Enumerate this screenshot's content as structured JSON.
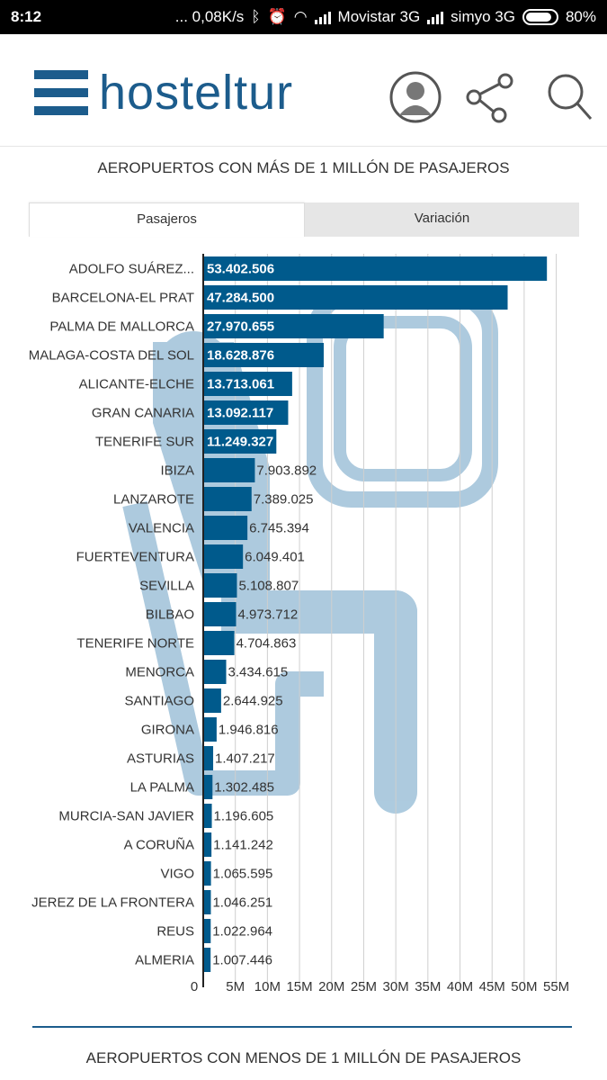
{
  "status": {
    "time": "8:12",
    "speed": "... 0,08K/s",
    "carrier1": "Movistar 3G",
    "carrier2": "simyo 3G",
    "battery": "80%"
  },
  "header": {
    "logo": "hosteltur",
    "icons": [
      "user-icon",
      "share-icon",
      "search-icon"
    ]
  },
  "section1_title": "AEROPUERTOS CON MÁS DE 1 MILLÓN DE PASAJEROS",
  "tabs": [
    {
      "label": "Pasajeros",
      "active": true
    },
    {
      "label": "Variación",
      "active": false
    }
  ],
  "section2_title": "AEROPUERTOS CON MENOS DE 1 MILLÓN DE PASAJEROS",
  "colors": {
    "bar": "#005a8c",
    "watermark": "#a9c8dd",
    "brand": "#1c5c8c"
  },
  "chart_data": {
    "type": "bar",
    "orientation": "horizontal",
    "categories": [
      "ADOLFO SUÁREZ...",
      "BARCELONA-EL PRAT",
      "PALMA DE MALLORCA",
      "MALAGA-COSTA DEL SOL",
      "ALICANTE-ELCHE",
      "GRAN CANARIA",
      "TENERIFE SUR",
      "IBIZA",
      "LANZAROTE",
      "VALENCIA",
      "FUERTEVENTURA",
      "SEVILLA",
      "BILBAO",
      "TENERIFE NORTE",
      "MENORCA",
      "SANTIAGO",
      "GIRONA",
      "ASTURIAS",
      "LA PALMA",
      "MURCIA-SAN JAVIER",
      "A CORUÑA",
      "VIGO",
      "JEREZ DE LA FRONTERA",
      "REUS",
      "ALMERIA"
    ],
    "values": [
      53402506,
      47284500,
      27970655,
      18628876,
      13713061,
      13092117,
      11249327,
      7903892,
      7389025,
      6745394,
      6049401,
      5108807,
      4973712,
      4704863,
      3434615,
      2644925,
      1946816,
      1407217,
      1302485,
      1196605,
      1141242,
      1065595,
      1046251,
      1022964,
      1007446
    ],
    "labels": [
      "53.402.506",
      "47.284.500",
      "27.970.655",
      "18.628.876",
      "13.713.061",
      "13.092.117",
      "11.249.327",
      "7.903.892",
      "7.389.025",
      "6.745.394",
      "6.049.401",
      "5.108.807",
      "4.973.712",
      "4.704.863",
      "3.434.615",
      "2.644.925",
      "1.946.816",
      "1.407.217",
      "1.302.485",
      "1.196.605",
      "1.141.242",
      "1.065.595",
      "1.046.251",
      "1.022.964",
      "1.007.446"
    ],
    "x_ticks": [
      "0",
      "5M",
      "10M",
      "15M",
      "20M",
      "25M",
      "30M",
      "35M",
      "40M",
      "45M",
      "50M",
      "55M"
    ],
    "xlim": [
      0,
      55000000
    ],
    "grid": true
  }
}
